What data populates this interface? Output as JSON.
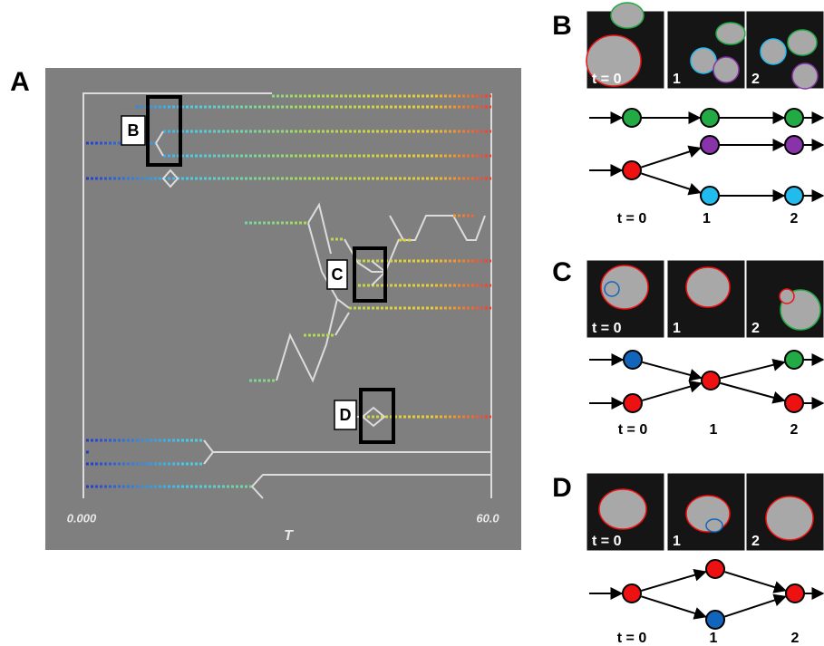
{
  "panel_a": {
    "label": "A",
    "x_start": "0.000",
    "x_end": "60.0",
    "x_axis": "T",
    "boxes": [
      "B",
      "C",
      "D"
    ]
  },
  "panel_b": {
    "label": "B",
    "frames": [
      "t = 0",
      "1",
      "2"
    ],
    "timeline": [
      "t = 0",
      "1",
      "2"
    ]
  },
  "panel_c": {
    "label": "C",
    "frames": [
      "t = 0",
      "1",
      "2"
    ],
    "timeline": [
      "t = 0",
      "1",
      "2"
    ]
  },
  "panel_d": {
    "label": "D",
    "frames": [
      "t = 0",
      "1",
      "2"
    ],
    "timeline": [
      "t = 0",
      "1",
      "2"
    ]
  }
}
